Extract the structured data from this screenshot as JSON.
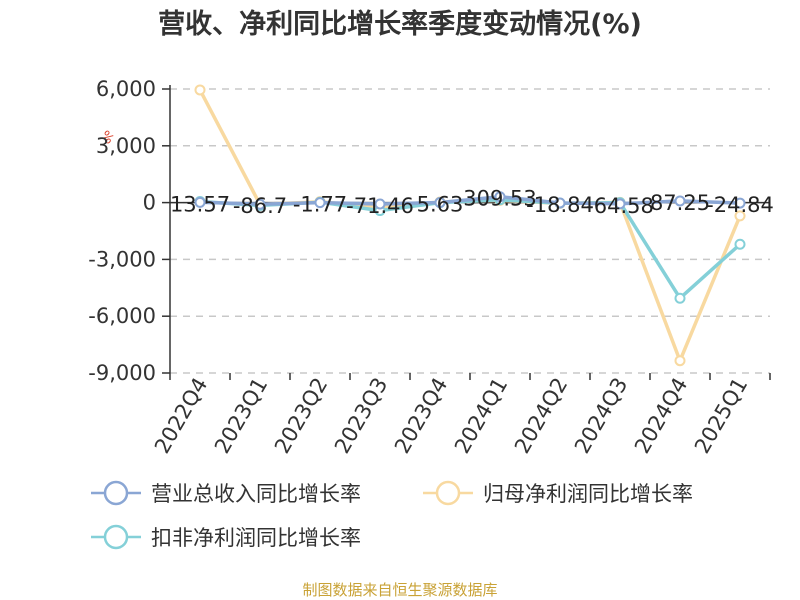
{
  "chart_data": {
    "type": "line",
    "title": "营收、净利同比增长率季度变动情况(%)",
    "unit": "%",
    "categories": [
      "2022Q4",
      "2023Q1",
      "2023Q2",
      "2023Q3",
      "2023Q4",
      "2024Q1",
      "2024Q2",
      "2024Q3",
      "2024Q4",
      "2025Q1"
    ],
    "ylim": [
      -9000,
      6000
    ],
    "yticks": [
      6000,
      3000,
      0,
      -3000,
      -6000,
      -9000
    ],
    "ytick_labels": [
      "6,000",
      "3,000",
      "0",
      "-3,000",
      "-6,000",
      "-9,000"
    ],
    "grid": true,
    "legend_position": "bottom",
    "series": [
      {
        "name": "营业总收入同比增长率",
        "color": "#8aa6d4",
        "values": [
          13.57,
          -86.7,
          -1.77,
          -71.46,
          5.63,
          309.53,
          -18.84,
          -64.58,
          87.25,
          -24.84
        ],
        "labels": [
          "13.57",
          "-86.7",
          "-1.77",
          "-71.46",
          "5.63",
          "309.53",
          "-18.84",
          "-64.58",
          "87.25",
          "-24.84"
        ]
      },
      {
        "name": "归母净利润同比增长率",
        "color": "#f8d9a0",
        "values": [
          5950,
          -100,
          50,
          -250,
          30,
          120,
          -40,
          10,
          -8350,
          -700
        ]
      },
      {
        "name": "扣非净利润同比增长率",
        "color": "#84d0d8",
        "values": [
          60,
          -150,
          20,
          -420,
          0,
          150,
          -30,
          0,
          -5050,
          -2200
        ]
      }
    ],
    "source": "制图数据来自恒生聚源数据库"
  }
}
